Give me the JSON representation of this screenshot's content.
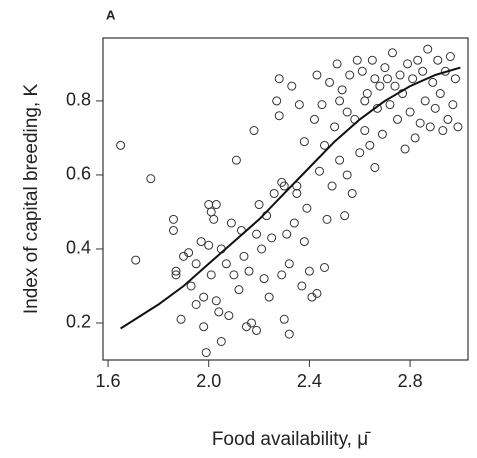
{
  "chart_data": {
    "type": "scatter",
    "panel_label": "A",
    "x_label": "Food availability, μ̄",
    "y_label": "Index of capital breeding, K",
    "xlim": [
      1.58,
      3.03
    ],
    "ylim": [
      0.1,
      0.97
    ],
    "xticks": [
      1.6,
      {
        "value": 2,
        "label": "2.0"
      },
      2.4,
      2.8
    ],
    "yticks": [
      0.2,
      0.4,
      0.6,
      0.8
    ],
    "grid": false,
    "series": [
      {
        "kind": "points",
        "color": "#333333",
        "x": [
          1.65,
          1.71,
          1.77,
          1.86,
          1.86,
          1.87,
          1.87,
          1.89,
          1.9,
          1.92,
          1.93,
          1.95,
          1.95,
          1.97,
          1.98,
          1.98,
          1.99,
          2.0,
          2.01,
          2.0,
          2.01,
          2.02,
          2.03,
          2.03,
          2.04,
          2.05,
          2.05,
          2.07,
          2.08,
          2.09,
          2.1,
          2.11,
          2.12,
          2.13,
          2.14,
          2.15,
          2.16,
          2.17,
          2.18,
          2.19,
          2.19,
          2.2,
          2.21,
          2.22,
          2.23,
          2.24,
          2.25,
          2.26,
          2.27,
          2.28,
          2.28,
          2.29,
          2.29,
          2.3,
          2.3,
          2.31,
          2.32,
          2.32,
          2.33,
          2.34,
          2.35,
          2.36,
          2.37,
          2.38,
          2.38,
          2.39,
          2.4,
          2.41,
          2.42,
          2.43,
          2.43,
          2.44,
          2.45,
          2.46,
          2.47,
          2.48,
          2.49,
          2.5,
          2.51,
          2.52,
          2.53,
          2.54,
          2.55,
          2.56,
          2.57,
          2.58,
          2.59,
          2.6,
          2.61,
          2.62,
          2.63,
          2.64,
          2.65,
          2.66,
          2.67,
          2.68,
          2.69,
          2.7,
          2.71,
          2.72,
          2.73,
          2.74,
          2.75,
          2.76,
          2.77,
          2.78,
          2.79,
          2.8,
          2.81,
          2.82,
          2.83,
          2.84,
          2.85,
          2.86,
          2.87,
          2.88,
          2.89,
          2.9,
          2.91,
          2.92,
          2.93,
          2.94,
          2.95,
          2.96,
          2.97,
          2.98,
          2.99,
          2.55,
          2.62,
          2.66,
          2.46,
          2.35,
          2.52
        ],
        "values": [
          0.68,
          0.37,
          0.59,
          0.48,
          0.45,
          0.33,
          0.34,
          0.21,
          0.38,
          0.39,
          0.3,
          0.36,
          0.25,
          0.42,
          0.27,
          0.19,
          0.12,
          0.52,
          0.5,
          0.41,
          0.33,
          0.48,
          0.52,
          0.26,
          0.23,
          0.15,
          0.4,
          0.36,
          0.22,
          0.47,
          0.33,
          0.64,
          0.29,
          0.45,
          0.38,
          0.19,
          0.34,
          0.2,
          0.72,
          0.18,
          0.44,
          0.52,
          0.4,
          0.32,
          0.49,
          0.27,
          0.43,
          0.55,
          0.8,
          0.86,
          0.76,
          0.58,
          0.33,
          0.57,
          0.21,
          0.44,
          0.36,
          0.17,
          0.84,
          0.47,
          0.55,
          0.79,
          0.3,
          0.42,
          0.69,
          0.51,
          0.34,
          0.27,
          0.75,
          0.28,
          0.87,
          0.61,
          0.79,
          0.35,
          0.48,
          0.85,
          0.57,
          0.73,
          0.9,
          0.64,
          0.83,
          0.49,
          0.77,
          0.87,
          0.55,
          0.75,
          0.91,
          0.66,
          0.88,
          0.72,
          0.82,
          0.68,
          0.91,
          0.86,
          0.78,
          0.84,
          0.71,
          0.89,
          0.86,
          0.79,
          0.93,
          0.84,
          0.75,
          0.87,
          0.82,
          0.67,
          0.9,
          0.77,
          0.86,
          0.7,
          0.91,
          0.74,
          0.88,
          0.8,
          0.94,
          0.73,
          0.85,
          0.78,
          0.91,
          0.82,
          0.72,
          0.88,
          0.75,
          0.92,
          0.79,
          0.86,
          0.73,
          0.6,
          0.8,
          0.62,
          0.68,
          0.57,
          0.8
        ]
      },
      {
        "kind": "line",
        "color": "#111111",
        "x": [
          1.65,
          1.8,
          1.9,
          2.0,
          2.1,
          2.2,
          2.3,
          2.4,
          2.5,
          2.6,
          2.7,
          2.8,
          2.9,
          3.0
        ],
        "values": [
          0.185,
          0.25,
          0.3,
          0.36,
          0.42,
          0.48,
          0.55,
          0.62,
          0.69,
          0.75,
          0.8,
          0.84,
          0.87,
          0.89
        ]
      }
    ]
  }
}
